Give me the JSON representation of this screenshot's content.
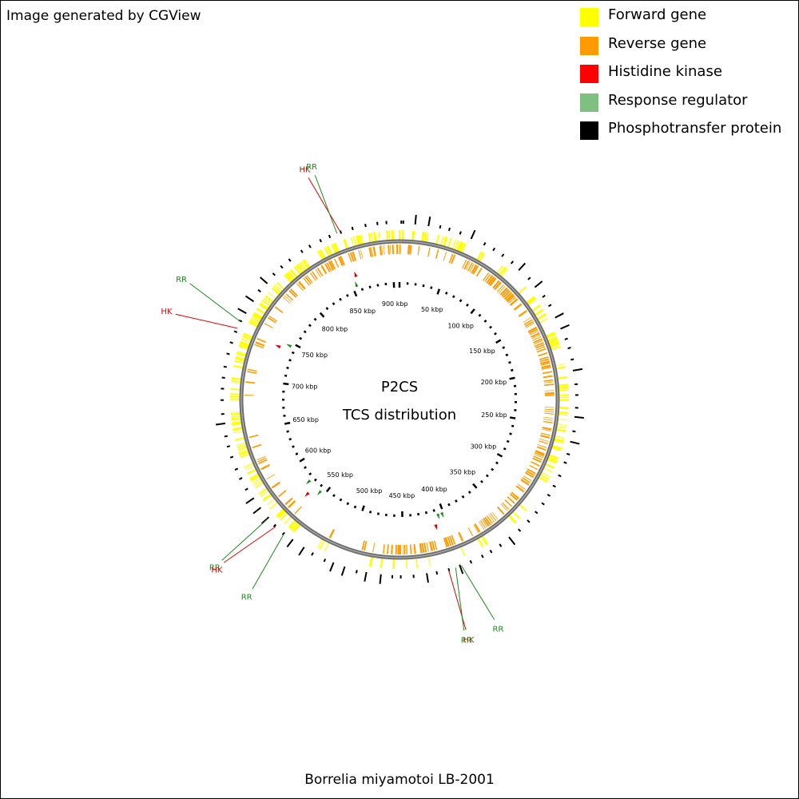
{
  "credit": "Image generated by CGView",
  "legend": [
    {
      "label": "Forward gene",
      "color": "#ffff00"
    },
    {
      "label": "Reverse gene",
      "color": "#ff9a00"
    },
    {
      "label": "Histidine kinase",
      "color": "#ff0000"
    },
    {
      "label": "Response regulator",
      "color": "#7fbf7f"
    },
    {
      "label": "Phosphotransfer protein",
      "color": "#000000"
    }
  ],
  "map": {
    "center_title": "P2CS",
    "center_subtitle": "TCS distribution",
    "genome_length_kbp": 907,
    "tick_labels": [
      "50 kbp",
      "100 kbp",
      "150 kbp",
      "200 kbp",
      "250 kbp",
      "300 kbp",
      "350 kbp",
      "400 kbp",
      "450 kbp",
      "500 kbp",
      "550 kbp",
      "600 kbp",
      "650 kbp",
      "700 kbp",
      "750 kbp",
      "800 kbp",
      "850 kbp",
      "900 kbp"
    ],
    "tick_values_kbp": [
      50,
      100,
      150,
      200,
      250,
      300,
      350,
      400,
      450,
      500,
      550,
      600,
      650,
      700,
      750,
      800,
      850,
      900
    ],
    "tcs_genes": [
      {
        "type": "HK",
        "position_kbp": 858
      },
      {
        "type": "RR",
        "position_kbp": 855
      },
      {
        "type": "RR",
        "position_kbp": 746
      },
      {
        "type": "HK",
        "position_kbp": 740
      },
      {
        "type": "RR",
        "position_kbp": 574
      },
      {
        "type": "HK",
        "position_kbp": 565
      },
      {
        "type": "RR",
        "position_kbp": 556
      },
      {
        "type": "HK",
        "position_kbp": 413
      },
      {
        "type": "RR",
        "position_kbp": 407
      },
      {
        "type": "RR",
        "position_kbp": 402
      }
    ]
  },
  "footer": "Borrelia miyamotoi LB-2001"
}
